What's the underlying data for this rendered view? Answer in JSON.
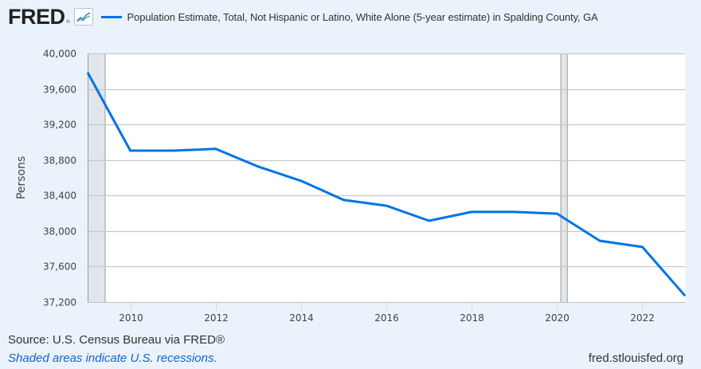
{
  "header": {
    "logo_text": "FRED",
    "logo_icon": "line-chart-icon"
  },
  "colors": {
    "series": "#0073e6",
    "recession": "#e1e6ec",
    "grid": "#c8c8c8",
    "background": "#eaf2fb",
    "plot_bg": "#ffffff"
  },
  "footer": {
    "source": "Source: U.S. Census Bureau via FRED®",
    "recession_note": "Shaded areas indicate U.S. recessions.",
    "url": "fred.stlouisfed.org"
  },
  "chart_data": {
    "type": "line",
    "title": "Population Estimate, Total, Not Hispanic or Latino, White Alone (5-year estimate) in Spalding County, GA",
    "xlabel": "",
    "ylabel": "Persons",
    "x": [
      2009,
      2010,
      2011,
      2012,
      2013,
      2014,
      2015,
      2016,
      2017,
      2018,
      2019,
      2020,
      2021,
      2022,
      2023
    ],
    "series": [
      {
        "name": "Population Estimate, Total, Not Hispanic or Latino, White Alone (5-year estimate) in Spalding County, GA",
        "values": [
          39785,
          38905,
          38905,
          38925,
          38725,
          38565,
          38350,
          38285,
          38115,
          38215,
          38215,
          38195,
          37890,
          37820,
          37270
        ]
      }
    ],
    "xlim": [
      2009,
      2023
    ],
    "ylim": [
      37200,
      40000
    ],
    "xticks": [
      2010,
      2012,
      2014,
      2016,
      2018,
      2020,
      2022
    ],
    "xtick_labels": [
      "2010",
      "2012",
      "2014",
      "2016",
      "2018",
      "2020",
      "2022"
    ],
    "yticks": [
      37200,
      37600,
      38000,
      38400,
      38800,
      39200,
      39600,
      40000
    ],
    "ytick_labels": [
      "37,200",
      "37,600",
      "38,000",
      "38,400",
      "38,800",
      "39,200",
      "39,600",
      "40,000"
    ],
    "recessions": [
      {
        "start": 2009.0,
        "end": 2009.42
      },
      {
        "start": 2020.08,
        "end": 2020.25
      }
    ],
    "grid": true,
    "legend": "top-left"
  }
}
